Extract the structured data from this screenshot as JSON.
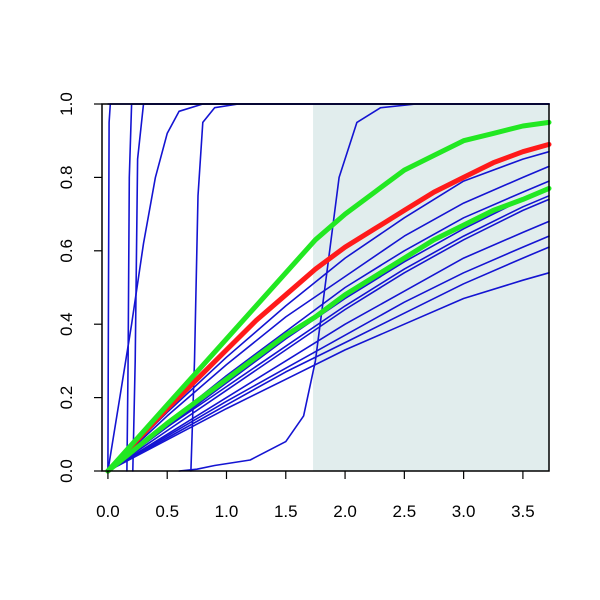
{
  "chart_data": {
    "type": "line",
    "title": "",
    "xlabel": "",
    "ylabel": "",
    "xlim": [
      -0.05,
      3.72
    ],
    "ylim": [
      0,
      1.0
    ],
    "x_ticks": [
      "0.0",
      "0.5",
      "1.0",
      "1.5",
      "2.0",
      "2.5",
      "3.0",
      "3.5"
    ],
    "y_ticks": [
      "0.0",
      "0.2",
      "0.4",
      "0.6",
      "0.8",
      "1.0"
    ],
    "shaded_region": {
      "x_from": 1.73,
      "x_to": 3.72,
      "color": "#e1eded"
    },
    "colors": {
      "blue": "#1414d2",
      "red": "#ff1a1a",
      "green": "#22e822",
      "axis": "#000000"
    },
    "legend": "none",
    "grid": false,
    "series": [
      {
        "color": "blue",
        "points": [
          [
            0,
            0
          ],
          [
            0.005,
            0.5
          ],
          [
            0.01,
            0.95
          ],
          [
            0.02,
            1
          ],
          [
            3.72,
            1
          ]
        ]
      },
      {
        "color": "blue",
        "points": [
          [
            0,
            1
          ],
          [
            3.72,
            1
          ]
        ]
      },
      {
        "color": "blue",
        "points": [
          [
            0.16,
            0
          ],
          [
            0.17,
            0.3
          ],
          [
            0.18,
            0.8
          ],
          [
            0.2,
            1
          ],
          [
            3.72,
            1
          ]
        ]
      },
      {
        "color": "blue",
        "points": [
          [
            0.21,
            0
          ],
          [
            0.23,
            0.3
          ],
          [
            0.25,
            0.85
          ],
          [
            0.3,
            1
          ],
          [
            3.72,
            1
          ]
        ]
      },
      {
        "color": "blue",
        "points": [
          [
            0,
            0
          ],
          [
            0.1,
            0.2
          ],
          [
            0.2,
            0.4
          ],
          [
            0.3,
            0.62
          ],
          [
            0.4,
            0.8
          ],
          [
            0.5,
            0.92
          ],
          [
            0.6,
            0.98
          ],
          [
            0.8,
            1
          ],
          [
            3.72,
            1
          ]
        ]
      },
      {
        "color": "blue",
        "points": [
          [
            0.7,
            0
          ],
          [
            0.73,
            0.3
          ],
          [
            0.76,
            0.75
          ],
          [
            0.8,
            0.95
          ],
          [
            0.9,
            0.99
          ],
          [
            1.1,
            1
          ],
          [
            3.72,
            1
          ]
        ]
      },
      {
        "color": "blue",
        "points": [
          [
            0.6,
            0
          ],
          [
            0.75,
            0.005
          ],
          [
            0.9,
            0.015
          ],
          [
            1.2,
            0.03
          ],
          [
            1.5,
            0.08
          ],
          [
            1.65,
            0.15
          ],
          [
            1.75,
            0.3
          ],
          [
            1.85,
            0.55
          ],
          [
            1.95,
            0.8
          ],
          [
            2.1,
            0.95
          ],
          [
            2.3,
            0.99
          ],
          [
            2.6,
            1
          ],
          [
            3.72,
            1
          ]
        ]
      },
      {
        "color": "blue",
        "points": [
          [
            0,
            0
          ],
          [
            0.5,
            0.16
          ],
          [
            1,
            0.31
          ],
          [
            1.5,
            0.45
          ],
          [
            2,
            0.58
          ],
          [
            2.5,
            0.69
          ],
          [
            3,
            0.79
          ],
          [
            3.5,
            0.85
          ],
          [
            3.72,
            0.87
          ]
        ]
      },
      {
        "color": "blue",
        "points": [
          [
            0,
            0
          ],
          [
            0.5,
            0.15
          ],
          [
            1,
            0.29
          ],
          [
            1.5,
            0.42
          ],
          [
            2,
            0.53
          ],
          [
            2.5,
            0.64
          ],
          [
            3,
            0.73
          ],
          [
            3.5,
            0.8
          ],
          [
            3.72,
            0.83
          ]
        ]
      },
      {
        "color": "blue",
        "points": [
          [
            0,
            0
          ],
          [
            0.5,
            0.13
          ],
          [
            1,
            0.26
          ],
          [
            1.5,
            0.38
          ],
          [
            2,
            0.5
          ],
          [
            2.5,
            0.6
          ],
          [
            3,
            0.69
          ],
          [
            3.5,
            0.76
          ],
          [
            3.72,
            0.79
          ]
        ]
      },
      {
        "color": "blue",
        "points": [
          [
            0,
            0
          ],
          [
            0.5,
            0.12
          ],
          [
            1,
            0.24
          ],
          [
            1.5,
            0.36
          ],
          [
            2,
            0.47
          ],
          [
            2.5,
            0.57
          ],
          [
            3,
            0.66
          ],
          [
            3.5,
            0.74
          ],
          [
            3.72,
            0.77
          ]
        ]
      },
      {
        "color": "blue",
        "points": [
          [
            0,
            0
          ],
          [
            0.5,
            0.11
          ],
          [
            1,
            0.22
          ],
          [
            1.5,
            0.33
          ],
          [
            2,
            0.44
          ],
          [
            2.5,
            0.54
          ],
          [
            3,
            0.63
          ],
          [
            3.5,
            0.71
          ],
          [
            3.72,
            0.74
          ]
        ]
      },
      {
        "color": "blue",
        "points": [
          [
            0,
            0
          ],
          [
            0.5,
            0.1
          ],
          [
            1,
            0.2
          ],
          [
            1.5,
            0.3
          ],
          [
            2,
            0.4
          ],
          [
            2.5,
            0.49
          ],
          [
            3,
            0.58
          ],
          [
            3.5,
            0.65
          ],
          [
            3.72,
            0.68
          ]
        ]
      },
      {
        "color": "blue",
        "points": [
          [
            0,
            0
          ],
          [
            0.5,
            0.095
          ],
          [
            1,
            0.19
          ],
          [
            1.5,
            0.28
          ],
          [
            2,
            0.37
          ],
          [
            2.5,
            0.46
          ],
          [
            3,
            0.54
          ],
          [
            3.5,
            0.61
          ],
          [
            3.72,
            0.64
          ]
        ]
      },
      {
        "color": "blue",
        "points": [
          [
            0,
            0
          ],
          [
            0.5,
            0.09
          ],
          [
            1,
            0.18
          ],
          [
            1.5,
            0.27
          ],
          [
            2,
            0.35
          ],
          [
            2.5,
            0.43
          ],
          [
            3,
            0.51
          ],
          [
            3.5,
            0.58
          ],
          [
            3.72,
            0.61
          ]
        ]
      },
      {
        "color": "blue",
        "points": [
          [
            0,
            0
          ],
          [
            0.5,
            0.085
          ],
          [
            1,
            0.17
          ],
          [
            1.5,
            0.25
          ],
          [
            2,
            0.33
          ],
          [
            2.5,
            0.4
          ],
          [
            3,
            0.47
          ],
          [
            3.5,
            0.52
          ],
          [
            3.72,
            0.54
          ]
        ]
      },
      {
        "color": "blue",
        "points": [
          [
            0,
            0
          ],
          [
            0.5,
            0.12
          ],
          [
            1,
            0.23
          ],
          [
            1.5,
            0.34
          ],
          [
            2,
            0.45
          ],
          [
            2.5,
            0.55
          ],
          [
            3,
            0.64
          ],
          [
            3.5,
            0.72
          ],
          [
            3.72,
            0.75
          ]
        ]
      },
      {
        "color": "red",
        "points": [
          [
            0,
            0
          ],
          [
            0.25,
            0.085
          ],
          [
            0.5,
            0.17
          ],
          [
            0.75,
            0.25
          ],
          [
            1,
            0.33
          ],
          [
            1.25,
            0.41
          ],
          [
            1.5,
            0.48
          ],
          [
            1.75,
            0.55
          ],
          [
            2,
            0.61
          ],
          [
            2.25,
            0.66
          ],
          [
            2.5,
            0.71
          ],
          [
            2.75,
            0.76
          ],
          [
            3,
            0.8
          ],
          [
            3.25,
            0.84
          ],
          [
            3.5,
            0.87
          ],
          [
            3.72,
            0.89
          ]
        ]
      },
      {
        "color": "green",
        "points": [
          [
            0,
            0
          ],
          [
            0.25,
            0.09
          ],
          [
            0.5,
            0.18
          ],
          [
            0.75,
            0.27
          ],
          [
            1,
            0.36
          ],
          [
            1.25,
            0.45
          ],
          [
            1.5,
            0.54
          ],
          [
            1.75,
            0.63
          ],
          [
            2,
            0.7
          ],
          [
            2.25,
            0.76
          ],
          [
            2.5,
            0.82
          ],
          [
            2.75,
            0.86
          ],
          [
            3,
            0.9
          ],
          [
            3.25,
            0.92
          ],
          [
            3.5,
            0.94
          ],
          [
            3.72,
            0.95
          ]
        ]
      },
      {
        "color": "green",
        "points": [
          [
            0,
            0
          ],
          [
            0.25,
            0.065
          ],
          [
            0.5,
            0.13
          ],
          [
            0.75,
            0.19
          ],
          [
            1,
            0.25
          ],
          [
            1.25,
            0.31
          ],
          [
            1.5,
            0.37
          ],
          [
            1.75,
            0.42
          ],
          [
            2,
            0.48
          ],
          [
            2.25,
            0.53
          ],
          [
            2.5,
            0.58
          ],
          [
            2.75,
            0.63
          ],
          [
            3,
            0.67
          ],
          [
            3.25,
            0.71
          ],
          [
            3.5,
            0.74
          ],
          [
            3.72,
            0.77
          ]
        ]
      }
    ]
  }
}
